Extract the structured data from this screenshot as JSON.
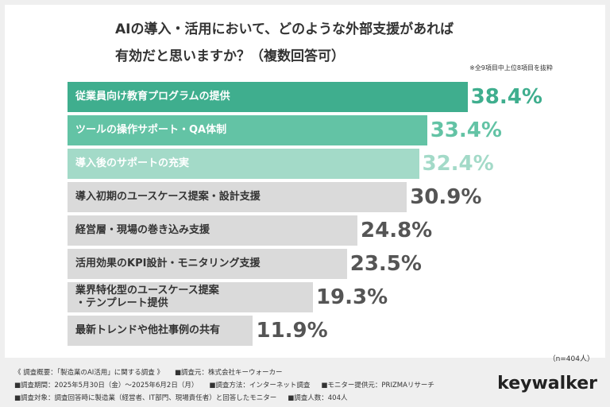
{
  "chart_data": {
    "type": "bar",
    "orientation": "horizontal",
    "title": "AIの導入・活用において、どのような外部支援があれば\n有効だと思いますか？（複数回答可）",
    "note": "※全9項目中上位8項目を抜粋",
    "sample_size": "（n=404人）",
    "categories": [
      "従業員向け教育プログラムの提供",
      "ツールの操作サポート・QA体制",
      "導入後のサポートの充実",
      "導入初期のユースケース提案・設計支援",
      "経営層・現場の巻き込み支援",
      "活用効果のKPI設計・モニタリング支援",
      "業界特化型のユースケース提案\n・テンプレート提供",
      "最新トレンドや他社事例の共有"
    ],
    "values": [
      38.4,
      33.4,
      32.4,
      30.9,
      24.8,
      23.5,
      19.3,
      11.9
    ],
    "value_labels": [
      "38.4%",
      "33.4%",
      "32.4%",
      "30.9%",
      "24.8%",
      "23.5%",
      "19.3%",
      "11.9%"
    ],
    "colors": [
      "#3fae8e",
      "#63c3a5",
      "#a3dac8",
      "#dadada",
      "#dadada",
      "#dadada",
      "#dadada",
      "#dadada"
    ],
    "label_colors": [
      "#ffffff",
      "#ffffff",
      "#ffffff",
      "#333333",
      "#333333",
      "#333333",
      "#333333",
      "#333333"
    ],
    "value_label_colors": [
      "#3fae8e",
      "#63c3a5",
      "#a3dac8",
      "#555555",
      "#555555",
      "#555555",
      "#555555",
      "#555555"
    ],
    "xlim": [
      -11,
      40
    ]
  },
  "footer": {
    "lines": [
      [
        "《 調査概要：「製造業のAI活用」に関する調査 》",
        "■調査元：株式会社キーウォーカー"
      ],
      [
        "■調査期間：2025年5月30日（金）〜2025年6月2日（月）",
        "■調査方法：インターネット調査",
        "■モニター提供元：PRIZMAリサーチ"
      ],
      [
        "■調査対象：調査回答時に製造業（経営者、IT部門、現場責任者）と回答したモニター",
        "■調査人数：404人"
      ]
    ],
    "logo": "keywalker"
  }
}
